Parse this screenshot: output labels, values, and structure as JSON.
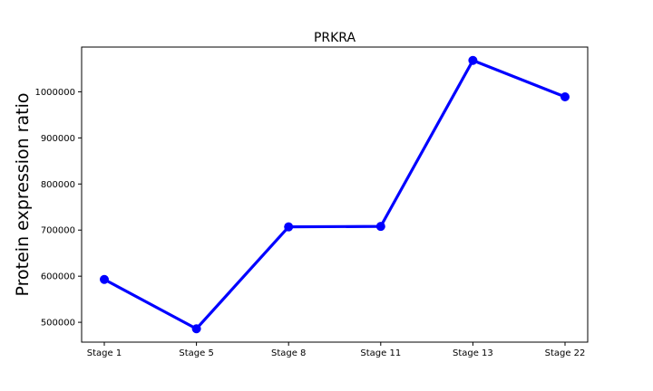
{
  "chart_data": {
    "type": "line",
    "title": "PRKRA",
    "xlabel": "",
    "ylabel": "Protein expression ratio",
    "categories": [
      "Stage 1",
      "Stage 5",
      "Stage 8",
      "Stage 11",
      "Stage 13",
      "Stage 22"
    ],
    "series": [
      {
        "name": "PRKRA",
        "values": [
          593000,
          486000,
          707000,
          708000,
          1068000,
          989000
        ]
      }
    ],
    "yticks": [
      500000,
      600000,
      700000,
      800000,
      900000,
      1000000
    ],
    "ytick_labels": [
      "500000",
      "600000",
      "700000",
      "800000",
      "900000",
      "1000000"
    ],
    "ylim": [
      457000,
      1097000
    ],
    "grid": false,
    "line_color": "#0000ff",
    "marker_color": "#0000ff"
  }
}
